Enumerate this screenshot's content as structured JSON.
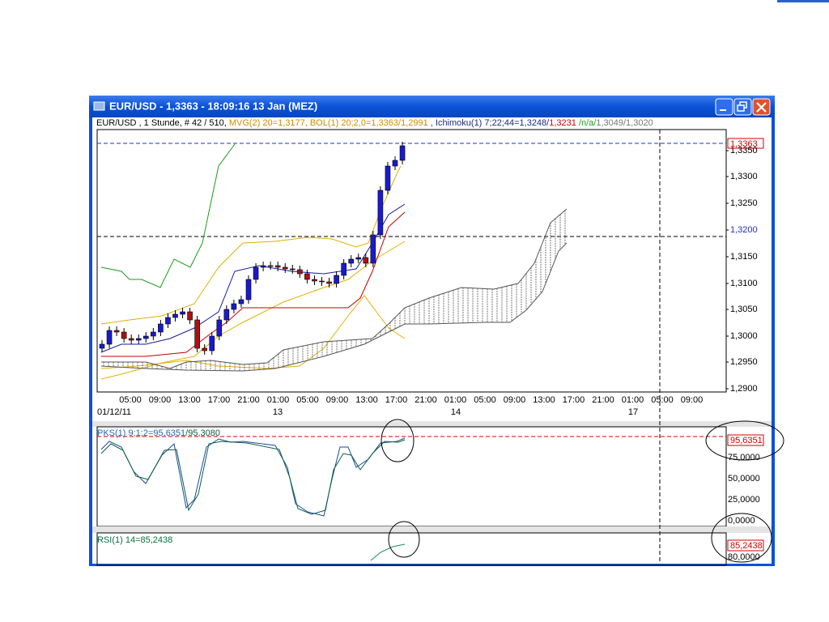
{
  "window": {
    "title": "EUR/USD - 1,3363 - 18:09:16  13 Jan (MEZ)"
  },
  "main_panel": {
    "info": [
      "EUR/USD , 1 Stunde, # 42 / 510, ",
      "MVG(2) 20=1,3177, BOL(1) 20;2,0=1,3363/1,2991",
      " , Ichimoku(1) 7;22;44=1,3248/",
      "1,3231",
      " /n/a/",
      "1,3049/1,3020"
    ],
    "current_price": "1,3363",
    "price_labels": [
      "1,3350",
      "1,3300",
      "1,3250",
      "1,3200",
      "1,3150",
      "1,3100",
      "1,3050",
      "1,3000",
      "1,2950",
      "1,2900"
    ],
    "time_labels": [
      "05:00",
      "09:00",
      "13:00",
      "17:00",
      "21:00",
      "01:00",
      "05:00",
      "09:00",
      "13:00",
      "17:00",
      "21:00",
      "01:00",
      "05:00",
      "09:00",
      "13:00",
      "17:00",
      "21:00",
      "01:00",
      "05:00",
      "09:00"
    ],
    "date_labels": [
      "01/12/11",
      "13",
      "14",
      "17"
    ]
  },
  "pks_panel": {
    "label": [
      "PKS(1) 9;1;2=95,6351",
      "/95,3080"
    ],
    "current": "95,6351",
    "axis_labels": [
      "75,0000",
      "50,0000",
      "25,0000",
      "0,0000"
    ]
  },
  "rsi_panel": {
    "label": "RSI(1) 14=85,2438",
    "current": "85,2438",
    "axis_labels": [
      "80,0000"
    ]
  }
}
